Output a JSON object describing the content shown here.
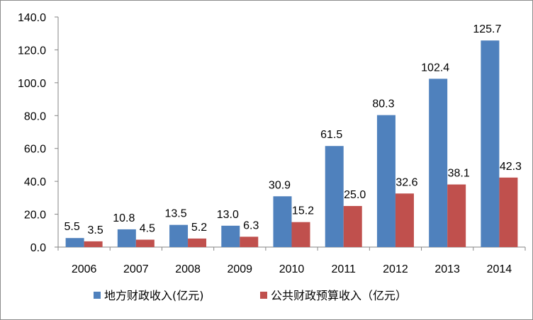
{
  "chart_data": {
    "type": "bar",
    "title": "",
    "xlabel": "",
    "ylabel": "",
    "categories": [
      "2006",
      "2007",
      "2008",
      "2009",
      "2010",
      "2011",
      "2012",
      "2013",
      "2014"
    ],
    "series": [
      {
        "name": "地方财政收入(亿元)",
        "color": "#4F81BD",
        "values": [
          5.5,
          10.8,
          13.5,
          13.0,
          30.9,
          61.5,
          80.3,
          102.4,
          125.7
        ],
        "labels": [
          "5.5",
          "10.8",
          "13.5",
          "13.0",
          "30.9",
          "61.5",
          "80.3",
          "102.4",
          "125.7"
        ]
      },
      {
        "name": "公共财政预算收入（亿元）",
        "color": "#C0504D",
        "values": [
          3.5,
          4.5,
          5.2,
          6.3,
          15.2,
          25.0,
          32.6,
          38.1,
          42.3
        ],
        "labels": [
          "3.5",
          "4.5",
          "5.2",
          "6.3",
          "15.2",
          "25.0",
          "32.6",
          "38.1",
          "42.3"
        ]
      }
    ],
    "ylim": [
      0,
      140
    ],
    "yticks": [
      "0.0",
      "20.0",
      "40.0",
      "60.0",
      "80.0",
      "100.0",
      "120.0",
      "140.0"
    ],
    "grid": false,
    "legend_position": "bottom"
  }
}
